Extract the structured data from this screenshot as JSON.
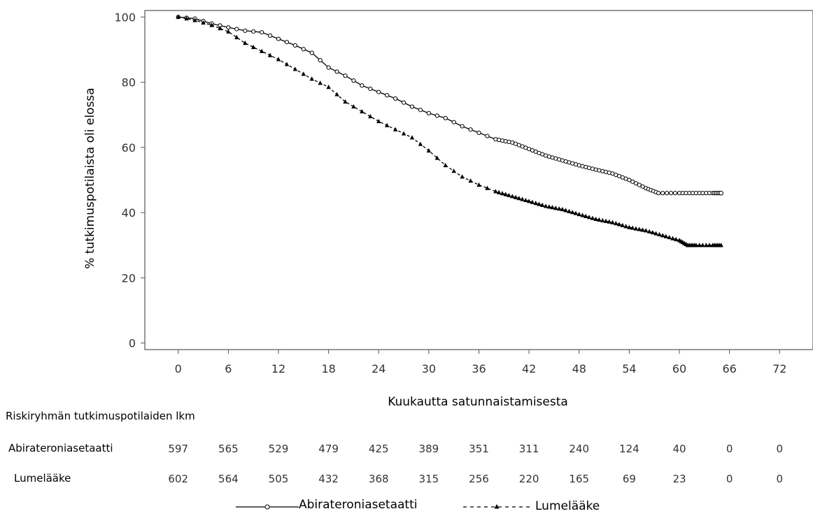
{
  "chart_data": {
    "type": "line",
    "ylabel": "% tutkimuspotilaista oli elossa",
    "xlabel": "Kuukautta satunnaistamisesta",
    "xlim": [
      -4,
      76
    ],
    "ylim": [
      -2,
      102
    ],
    "xticks": [
      0,
      6,
      12,
      18,
      24,
      30,
      36,
      42,
      48,
      54,
      60,
      66,
      72
    ],
    "yticks": [
      0,
      20,
      40,
      60,
      80,
      100
    ],
    "grid": false,
    "legend_position": "bottom",
    "series": [
      {
        "name": "Abirateroniasetaatti",
        "style": "solid",
        "marker": "open-circle",
        "color": "#000000",
        "points": [
          [
            0,
            100
          ],
          [
            2,
            99.5
          ],
          [
            4,
            98
          ],
          [
            6,
            96.8
          ],
          [
            8,
            95.8
          ],
          [
            10,
            95.3
          ],
          [
            12,
            93.3
          ],
          [
            14,
            91.3
          ],
          [
            16,
            89
          ],
          [
            18,
            84.5
          ],
          [
            20,
            82
          ],
          [
            22,
            79
          ],
          [
            24,
            77
          ],
          [
            26,
            75
          ],
          [
            28,
            72.5
          ],
          [
            30,
            70.5
          ],
          [
            32,
            69
          ],
          [
            34,
            66.5
          ],
          [
            36,
            64.5
          ],
          [
            38,
            62.5
          ],
          [
            40,
            61.5
          ],
          [
            42,
            59.5
          ],
          [
            44,
            57.5
          ],
          [
            46,
            56
          ],
          [
            48,
            54.5
          ],
          [
            50,
            53.2
          ],
          [
            52,
            52
          ],
          [
            54,
            50
          ],
          [
            56,
            47.5
          ],
          [
            57.5,
            46
          ],
          [
            60,
            46
          ],
          [
            62,
            46
          ],
          [
            64,
            46
          ],
          [
            65,
            46
          ]
        ]
      },
      {
        "name": "Lumelääke",
        "style": "dashed",
        "marker": "filled-triangle",
        "color": "#000000",
        "points": [
          [
            0,
            100
          ],
          [
            2,
            99
          ],
          [
            4,
            97.5
          ],
          [
            6,
            95.5
          ],
          [
            8,
            92
          ],
          [
            10,
            89.5
          ],
          [
            12,
            87
          ],
          [
            14,
            84
          ],
          [
            16,
            81
          ],
          [
            18,
            78.5
          ],
          [
            20,
            74
          ],
          [
            22,
            71
          ],
          [
            24,
            68
          ],
          [
            26,
            65.5
          ],
          [
            28,
            63
          ],
          [
            30,
            59
          ],
          [
            32,
            54.5
          ],
          [
            34,
            51
          ],
          [
            36,
            48.5
          ],
          [
            38,
            46.5
          ],
          [
            40,
            45
          ],
          [
            42,
            43.5
          ],
          [
            44,
            42
          ],
          [
            46,
            41
          ],
          [
            48,
            39.5
          ],
          [
            50,
            38
          ],
          [
            52,
            37
          ],
          [
            54,
            35.5
          ],
          [
            56,
            34.5
          ],
          [
            58,
            33
          ],
          [
            60,
            31.5
          ],
          [
            61,
            30
          ],
          [
            62,
            30
          ],
          [
            64,
            30
          ],
          [
            65,
            30
          ]
        ]
      }
    ]
  },
  "risk_table": {
    "title": "Riskiryhmän tutkimuspotilaiden lkm",
    "rows": [
      {
        "label": "Abirateroniasetaatti",
        "values": [
          "597",
          "565",
          "529",
          "479",
          "425",
          "389",
          "351",
          "311",
          "240",
          "124",
          "40",
          "0",
          "0"
        ]
      },
      {
        "label": "Lumelääke",
        "values": [
          "602",
          "564",
          "505",
          "432",
          "368",
          "315",
          "256",
          "220",
          "165",
          "69",
          "23",
          "0",
          "0"
        ]
      }
    ]
  },
  "legend": {
    "items": [
      {
        "label": "Abirateroniasetaatti"
      },
      {
        "label": "Lumelääke"
      }
    ]
  }
}
